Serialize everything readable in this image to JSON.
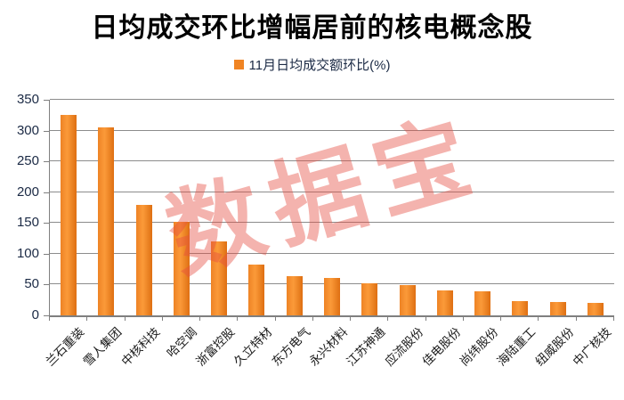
{
  "chart_data": {
    "type": "bar",
    "title": "日均成交环比增幅居前的核电概念股",
    "legend": "11月日均成交额环比(%)",
    "watermark": "数据宝",
    "categories": [
      "兰石重装",
      "雪人集团",
      "中核科技",
      "哈空调",
      "浙富控股",
      "久立特材",
      "东方电气",
      "永兴材料",
      "江苏神通",
      "应流股份",
      "佳电股份",
      "尚纬股份",
      "海陆重工",
      "纽威股份",
      "中广核技"
    ],
    "values": [
      326,
      305,
      180,
      152,
      120,
      82,
      64,
      61,
      52,
      49,
      41,
      39,
      23,
      21,
      20
    ],
    "ylabel": "",
    "xlabel": "",
    "ylim": [
      0,
      350
    ],
    "yticks": [
      0,
      50,
      100,
      150,
      200,
      250,
      300,
      350
    ],
    "grid": true,
    "legend_position": "top-center",
    "colors": {
      "bar": "#F08423",
      "bar_gradient": [
        "#EE8325",
        "#FB9A39",
        "#DE6F12"
      ],
      "title": "#000000",
      "axis_text": "#1B2A45",
      "category_text": "#1A1A1A",
      "gridline": "#8C8C8C",
      "axis_line": "#7F7F7F",
      "watermark": "#E74C41",
      "watermark_opacity": 0.42
    }
  }
}
